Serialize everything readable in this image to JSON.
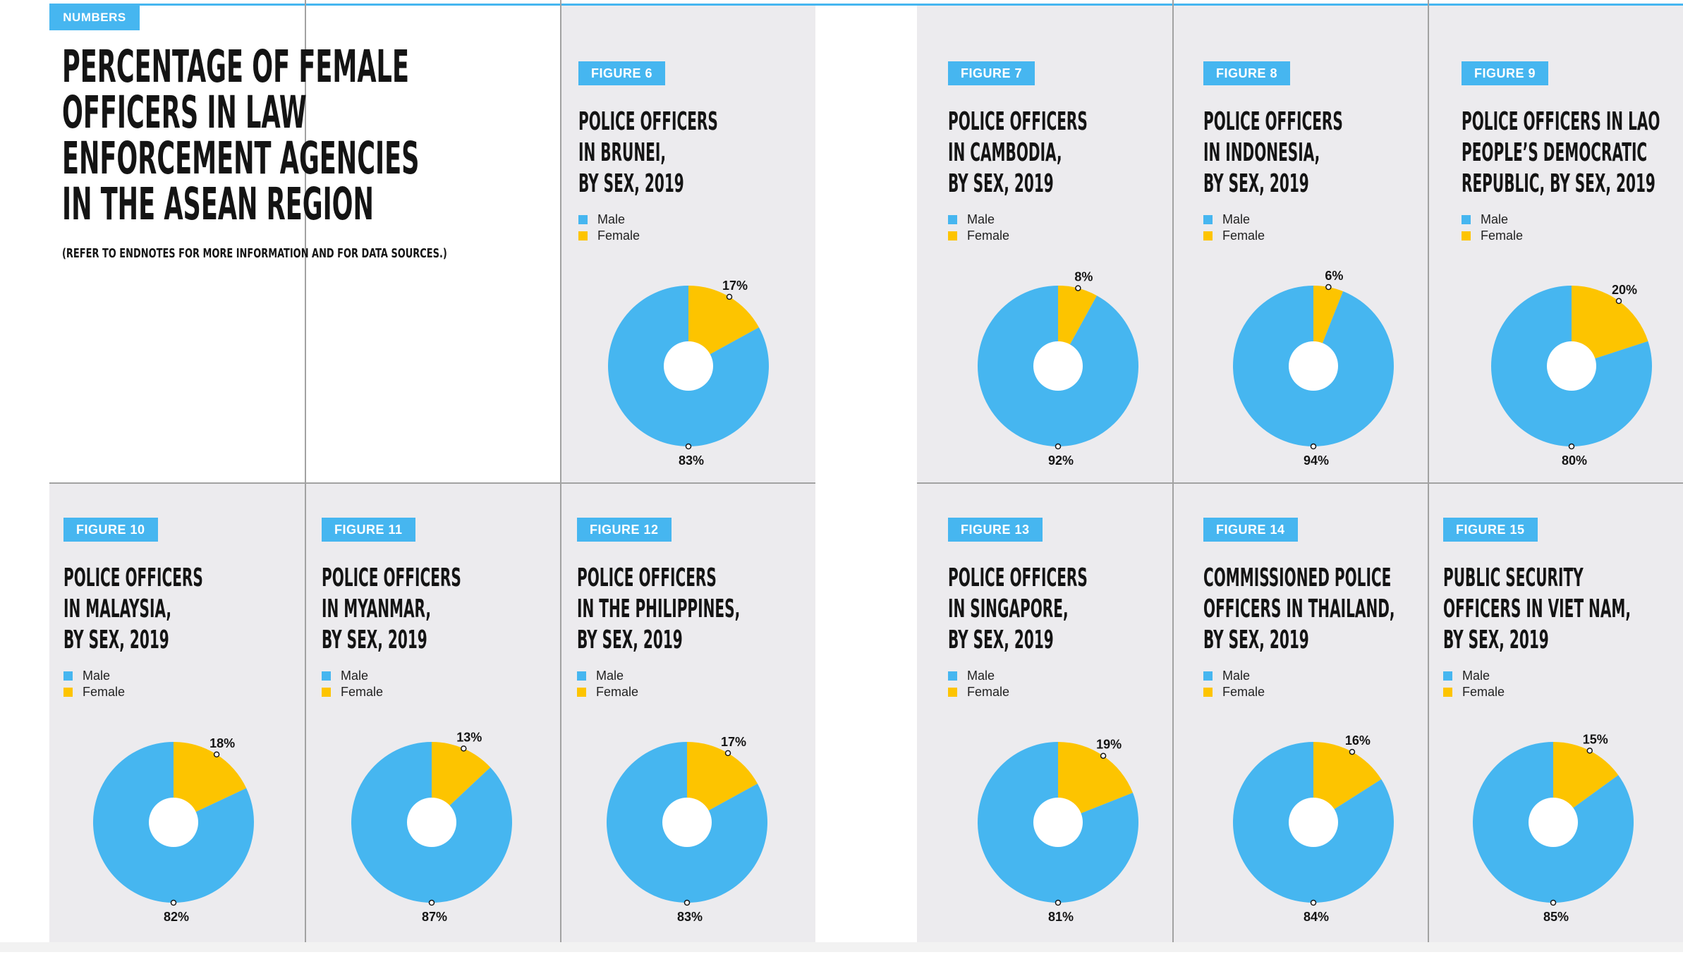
{
  "header": {
    "section_tag": "NUMBERS",
    "title_lines": [
      "PERCENTAGE OF FEMALE",
      "OFFICERS IN LAW",
      "ENFORCEMENT AGENCIES",
      "IN THE ASEAN REGION"
    ],
    "note": "(REFER TO ENDNOTES FOR MORE INFORMATION AND FOR DATA SOURCES.)"
  },
  "colors": {
    "male": "#46b6f0",
    "female": "#fdc400",
    "panel": "#ecebee",
    "accent": "#46b6f0"
  },
  "chart_data": [
    {
      "type": "pie",
      "figure": "FIGURE 6",
      "title_lines": [
        "POLICE OFFICERS",
        "IN BRUNEI,",
        "BY SEX, 2019"
      ],
      "categories": [
        "Male",
        "Female"
      ],
      "values": [
        83,
        17
      ],
      "labels": [
        "83%",
        "17%"
      ],
      "legend": [
        "Male",
        "Female"
      ]
    },
    {
      "type": "pie",
      "figure": "FIGURE 7",
      "title_lines": [
        "POLICE OFFICERS",
        "IN CAMBODIA,",
        "BY SEX, 2019"
      ],
      "categories": [
        "Male",
        "Female"
      ],
      "values": [
        92,
        8
      ],
      "labels": [
        "92%",
        "8%"
      ],
      "legend": [
        "Male",
        "Female"
      ]
    },
    {
      "type": "pie",
      "figure": "FIGURE 8",
      "title_lines": [
        "POLICE OFFICERS",
        "IN INDONESIA,",
        "BY SEX, 2019"
      ],
      "categories": [
        "Male",
        "Female"
      ],
      "values": [
        94,
        6
      ],
      "labels": [
        "94%",
        "6%"
      ],
      "legend": [
        "Male",
        "Female"
      ]
    },
    {
      "type": "pie",
      "figure": "FIGURE 9",
      "title_lines": [
        "POLICE OFFICERS IN LAO",
        "PEOPLE’S DEMOCRATIC",
        "REPUBLIC, BY SEX, 2019"
      ],
      "categories": [
        "Male",
        "Female"
      ],
      "values": [
        80,
        20
      ],
      "labels": [
        "80%",
        "20%"
      ],
      "legend": [
        "Male",
        "Female"
      ]
    },
    {
      "type": "pie",
      "figure": "FIGURE 10",
      "title_lines": [
        "POLICE OFFICERS",
        "IN MALAYSIA,",
        "BY SEX, 2019"
      ],
      "categories": [
        "Male",
        "Female"
      ],
      "values": [
        82,
        18
      ],
      "labels": [
        "82%",
        "18%"
      ],
      "legend": [
        "Male",
        "Female"
      ]
    },
    {
      "type": "pie",
      "figure": "FIGURE 11",
      "title_lines": [
        "POLICE OFFICERS",
        "IN MYANMAR,",
        "BY SEX, 2019"
      ],
      "categories": [
        "Male",
        "Female"
      ],
      "values": [
        87,
        13
      ],
      "labels": [
        "87%",
        "13%"
      ],
      "legend": [
        "Male",
        "Female"
      ]
    },
    {
      "type": "pie",
      "figure": "FIGURE 12",
      "title_lines": [
        "POLICE OFFICERS",
        "IN THE PHILIPPINES,",
        "BY SEX, 2019"
      ],
      "categories": [
        "Male",
        "Female"
      ],
      "values": [
        83,
        17
      ],
      "labels": [
        "83%",
        "17%"
      ],
      "legend": [
        "Male",
        "Female"
      ]
    },
    {
      "type": "pie",
      "figure": "FIGURE 13",
      "title_lines": [
        "POLICE OFFICERS",
        "IN SINGAPORE,",
        "BY SEX, 2019"
      ],
      "categories": [
        "Male",
        "Female"
      ],
      "values": [
        81,
        19
      ],
      "labels": [
        "81%",
        "19%"
      ],
      "legend": [
        "Male",
        "Female"
      ]
    },
    {
      "type": "pie",
      "figure": "FIGURE 14",
      "title_lines": [
        "COMMISSIONED POLICE",
        "OFFICERS IN THAILAND,",
        "BY SEX, 2019"
      ],
      "categories": [
        "Male",
        "Female"
      ],
      "values": [
        84,
        16
      ],
      "labels": [
        "84%",
        "16%"
      ],
      "legend": [
        "Male",
        "Female"
      ]
    },
    {
      "type": "pie",
      "figure": "FIGURE 15",
      "title_lines": [
        "PUBLIC SECURITY",
        "OFFICERS IN VIET NAM,",
        "BY SEX, 2019"
      ],
      "categories": [
        "Male",
        "Female"
      ],
      "values": [
        85,
        15
      ],
      "labels": [
        "85%",
        "15%"
      ],
      "legend": [
        "Male",
        "Female"
      ]
    }
  ]
}
